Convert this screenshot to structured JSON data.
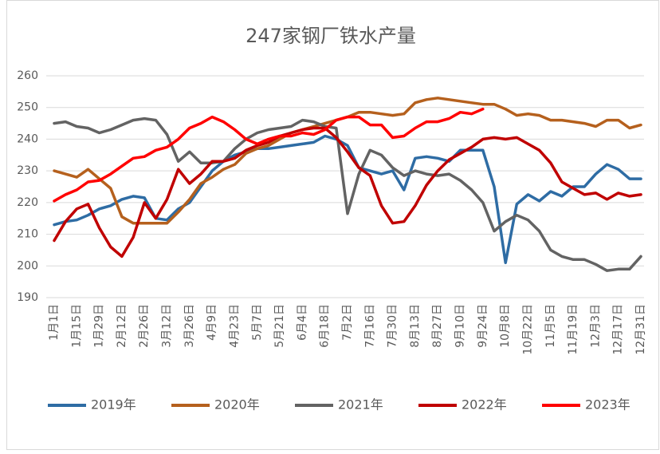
{
  "chart_data": {
    "type": "line",
    "title": "247家钢厂铁水产量",
    "categories": [
      "1月1日",
      null,
      "1月15日",
      null,
      "1月29日",
      null,
      "2月12日",
      null,
      "2月26日",
      null,
      "3月12日",
      null,
      "3月26日",
      null,
      "4月9日",
      null,
      "4月23日",
      null,
      "5月7日",
      null,
      "5月21日",
      null,
      "6月4日",
      null,
      "6月18日",
      null,
      "7月2日",
      null,
      "7月16日",
      null,
      "7月30日",
      null,
      "8月13日",
      null,
      "8月27日",
      null,
      "9月10日",
      null,
      "9月24日",
      null,
      "10月8日",
      null,
      "10月22日",
      null,
      "11月5日",
      null,
      "11月19日",
      null,
      "12月3日",
      null,
      "12月17日",
      null,
      "12月31日"
    ],
    "ylim": [
      190,
      260
    ],
    "yticks": [
      190,
      200,
      210,
      220,
      230,
      240,
      250,
      260
    ],
    "grid": true,
    "legend": "bottom",
    "series": [
      {
        "name": "2019年",
        "color": "#2e6ca4",
        "values": [
          213,
          214,
          214.5,
          216,
          218,
          219,
          221,
          222,
          221.5,
          215,
          214.5,
          218,
          220,
          225,
          230,
          233,
          235,
          236,
          237,
          237,
          237.5,
          238,
          238.5,
          239,
          241,
          240,
          238,
          231,
          230,
          229,
          230,
          224,
          234,
          234.5,
          234,
          233,
          236.5,
          236.5,
          236.5,
          225,
          201,
          219.5,
          222.5,
          220.5,
          223.5,
          222,
          225,
          225,
          229,
          232,
          230.5,
          227.5,
          227.5
        ]
      },
      {
        "name": "2020年",
        "color": "#b5601d",
        "values": [
          230,
          229,
          228,
          230.5,
          227.5,
          224.5,
          215.5,
          213.5,
          213.5,
          213.5,
          213.5,
          217,
          221,
          226,
          228,
          230.5,
          232,
          235.5,
          237,
          238,
          240,
          242,
          243,
          244,
          245,
          246,
          247,
          248.5,
          248.5,
          248,
          247.5,
          248,
          251.5,
          252.5,
          253,
          252.5,
          252,
          251.5,
          251,
          251,
          249.5,
          247.5,
          248,
          247.5,
          246,
          246,
          245.5,
          245,
          244,
          246,
          246,
          243.5,
          244.5
        ]
      },
      {
        "name": "2021年",
        "color": "#636363",
        "values": [
          245,
          245.5,
          244,
          243.5,
          242,
          243,
          244.5,
          246,
          246.5,
          246,
          241.5,
          233,
          236,
          232.5,
          232.5,
          233,
          237,
          240,
          242,
          243,
          243.5,
          244,
          246,
          245.5,
          244,
          243.5,
          216.5,
          229,
          236.5,
          235,
          231,
          228.5,
          230,
          229,
          228.5,
          229,
          227,
          224,
          220,
          211,
          214,
          216,
          214.5,
          211,
          205,
          203,
          202,
          202,
          200.5,
          198.5,
          199,
          199,
          203
        ]
      },
      {
        "name": "2022年",
        "color": "#c00000",
        "values": [
          208,
          214,
          218,
          219.5,
          212,
          206,
          203,
          209,
          220,
          215,
          221,
          230.5,
          226,
          229,
          233,
          233,
          234,
          236.5,
          238,
          239,
          241,
          242,
          243,
          243.5,
          243.5,
          240.5,
          236,
          231,
          228.5,
          219,
          213.5,
          214,
          219,
          225.5,
          230,
          233.5,
          235.5,
          237.5,
          240,
          240.5,
          240,
          240.5,
          238.5,
          236.5,
          232.5,
          226.5,
          224.5,
          222.5,
          223,
          221,
          223,
          222,
          222.5
        ]
      },
      {
        "name": "2023年",
        "color": "#ff0000",
        "values": [
          220.5,
          222.5,
          224,
          226.5,
          227,
          229,
          231.5,
          234,
          234.5,
          236.5,
          237.5,
          240,
          243.5,
          245,
          247,
          245.5,
          243,
          240,
          238.5,
          240,
          241,
          241,
          242,
          241.5,
          243,
          246,
          247,
          247,
          244.5,
          244.5,
          240.5,
          241,
          243.5,
          245.5,
          245.5,
          246.5,
          248.5,
          248,
          249.5,
          null,
          null,
          null,
          null,
          null,
          null,
          null,
          null,
          null,
          null,
          null,
          null,
          null,
          null
        ]
      }
    ]
  }
}
